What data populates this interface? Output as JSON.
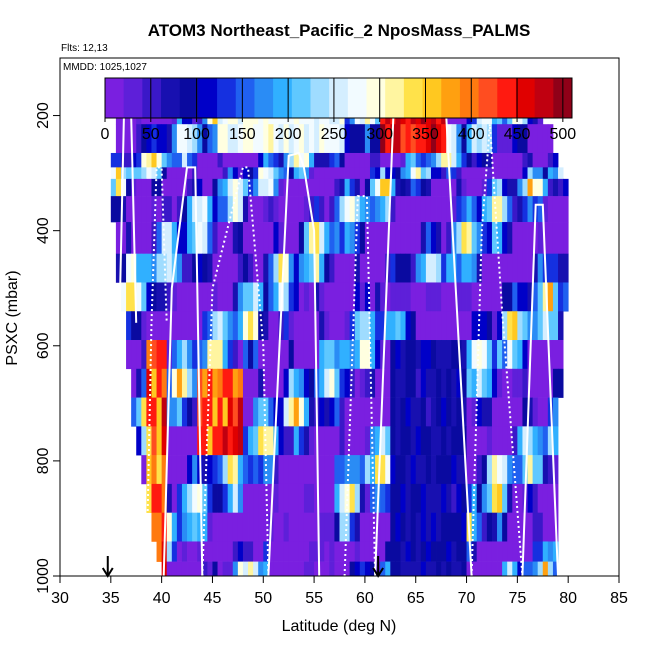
{
  "chart_data": {
    "type": "heatmap",
    "title": "ATOM3 Northeast_Pacific_2 NposMass_PALMS",
    "flights_label": "Flts: 12,13",
    "dates_label": "MMDD: 1025,1027",
    "xlabel": "Latitude (deg N)",
    "ylabel": "PSXC (mbar)",
    "xlim": [
      30,
      85
    ],
    "ylim": [
      1000,
      100
    ],
    "x_ticks": [
      "30",
      "35",
      "40",
      "45",
      "50",
      "55",
      "60",
      "65",
      "70",
      "75",
      "80",
      "85"
    ],
    "y_ticks": [
      "200",
      "400",
      "600",
      "800",
      "1000"
    ],
    "colorbar": {
      "range": [
        0,
        510
      ],
      "ticks": [
        "0",
        "50",
        "100",
        "150",
        "200",
        "250",
        "300",
        "350",
        "400",
        "450",
        "500"
      ],
      "colors": [
        "#7a1fe0",
        "#5e1fd9",
        "#3a18c8",
        "#1810b0",
        "#0a0aa0",
        "#0000c8",
        "#1530e0",
        "#2060f0",
        "#2a8cf5",
        "#30b0ff",
        "#5fc8ff",
        "#9fdcff",
        "#d4eeff",
        "#f2fbff",
        "#ffffe0",
        "#fff5a0",
        "#ffe24a",
        "#ffc820",
        "#ffa010",
        "#ff7a10",
        "#ff4d20",
        "#ff1a10",
        "#e00000",
        "#c00010",
        "#900018"
      ]
    },
    "value_ranges": {
      "min": 0,
      "max": 510
    },
    "markers": {
      "arrow_latitudes": [
        34.7,
        61.3
      ]
    },
    "band_levels_mbar": [
      170,
      215,
      265,
      290,
      310,
      340,
      385,
      440,
      490,
      540,
      590,
      640,
      690,
      740,
      790,
      840,
      890,
      940,
      975,
      1000
    ],
    "band_latitude_ranges": [
      [
        35.5,
        77.5
      ],
      [
        35.5,
        78.5
      ],
      [
        35.0,
        79.0
      ],
      [
        35.0,
        79.5
      ],
      [
        35.0,
        80.0
      ],
      [
        35.0,
        80.0
      ],
      [
        35.5,
        80.0
      ],
      [
        35.5,
        80.0
      ],
      [
        36.0,
        80.0
      ],
      [
        36.5,
        79.5
      ],
      [
        36.5,
        79.5
      ],
      [
        37.0,
        79.5
      ],
      [
        37.0,
        79.0
      ],
      [
        37.5,
        79.0
      ],
      [
        38.0,
        79.0
      ],
      [
        38.5,
        79.0
      ],
      [
        39.0,
        79.0
      ],
      [
        39.5,
        79.0
      ],
      [
        40.0,
        79.0
      ]
    ],
    "flight_profiles": [
      {
        "x": [
          35.2,
          35.8,
          36.3,
          37.0,
          37.5
        ],
        "y": [
          1000,
          600,
          195,
          195,
          560
        ]
      },
      {
        "x": [
          38.5,
          39.0,
          39.5,
          40.0,
          40.5
        ],
        "y": [
          1000,
          560,
          290,
          290,
          560
        ]
      },
      {
        "x": [
          40.2,
          41.0,
          42.5,
          43.3,
          44.0
        ],
        "y": [
          1000,
          500,
          290,
          290,
          1000
        ]
      },
      {
        "x": [
          44.0,
          45.0,
          48.0,
          48.5,
          50.0,
          50.5
        ],
        "y": [
          1000,
          500,
          290,
          290,
          600,
          1000
        ]
      },
      {
        "x": [
          50.5,
          52.5,
          53.5,
          54.0,
          55.0,
          55.5
        ],
        "y": [
          1000,
          270,
          265,
          290,
          400,
          1000
        ]
      },
      {
        "x": [
          58.0,
          59.3,
          60.2,
          61.0
        ],
        "y": [
          1000,
          340,
          340,
          1000
        ]
      },
      {
        "x": [
          61.0,
          62.8,
          63.5,
          67.0,
          68.0,
          70.5
        ],
        "y": [
          1000,
          200,
          180,
          180,
          200,
          1000
        ]
      },
      {
        "x": [
          70.5,
          71.5,
          72.3,
          73.5,
          75.5
        ],
        "y": [
          1000,
          400,
          215,
          540,
          1000
        ]
      },
      {
        "x": [
          75.5,
          76.8,
          77.5,
          79.0
        ],
        "y": [
          1000,
          355,
          355,
          1000
        ]
      }
    ]
  }
}
